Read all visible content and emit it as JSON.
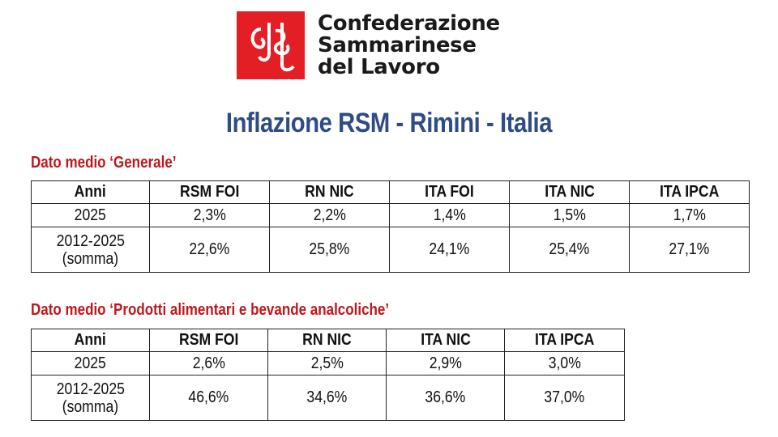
{
  "header": {
    "org_line1": "Confederazione",
    "org_line2": "Sammarinese",
    "org_line3": "del Lavoro",
    "logo_color": "#e31e24"
  },
  "title": "Inflazione RSM - Rimini - Italia",
  "section1": {
    "label": "Dato medio ‘Generale’",
    "columns": [
      "Anni",
      "RSM FOI",
      "RN NIC",
      "ITA FOI",
      "ITA NIC",
      "ITA IPCA"
    ],
    "rows": [
      {
        "year_line1": "2025",
        "year_line2": "",
        "values": [
          "2,3%",
          "2,2%",
          "1,4%",
          "1,5%",
          "1,7%"
        ]
      },
      {
        "year_line1": "2012-2025",
        "year_line2": "(somma)",
        "values": [
          "22,6%",
          "25,8%",
          "24,1%",
          "25,4%",
          "27,1%"
        ]
      }
    ]
  },
  "section2": {
    "label": "Dato medio ‘Prodotti alimentari e bevande analcoliche’",
    "columns": [
      "Anni",
      "RSM FOI",
      "RN NIC",
      "ITA NIC",
      "ITA IPCA"
    ],
    "rows": [
      {
        "year_line1": "2025",
        "year_line2": "",
        "values": [
          "2,6%",
          "2,5%",
          "2,9%",
          "3,0%"
        ]
      },
      {
        "year_line1": "2012-2025",
        "year_line2": "(somma)",
        "values": [
          "46,6%",
          "34,6%",
          "36,6%",
          "37,0%"
        ]
      }
    ]
  }
}
